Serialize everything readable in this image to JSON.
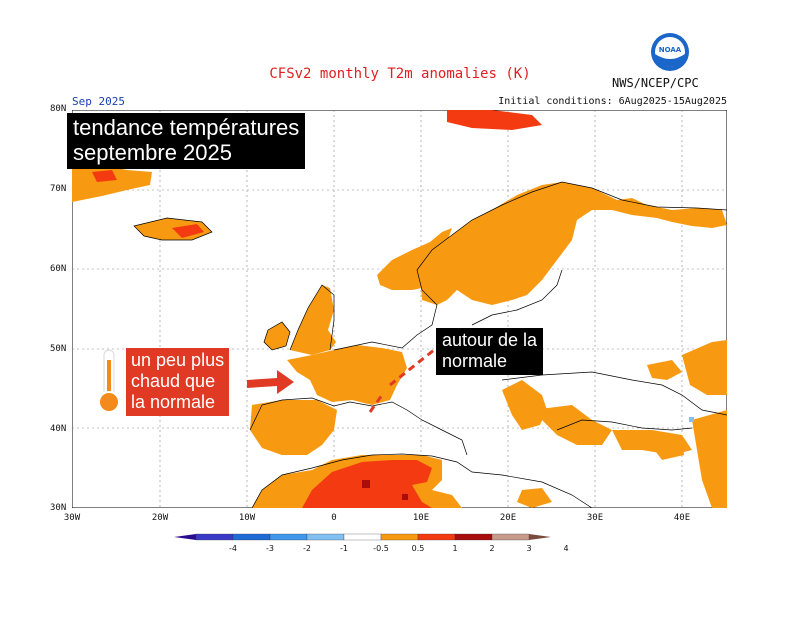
{
  "header": {
    "title": "CFSv2 monthly T2m anomalies (K)",
    "agency": "NWS/NCEP/CPC",
    "month": "Sep 2025",
    "initial_conditions": "Initial conditions: 6Aug2025-15Aug2025"
  },
  "annotations": {
    "headline_line1": "tendance températures",
    "headline_line2": "septembre 2025",
    "warm_line1": "un peu plus",
    "warm_line2": "chaud que",
    "warm_line3": "la normale",
    "normal_line1": "autour de la",
    "normal_line2": "normale"
  },
  "map": {
    "lat_labels": [
      "80N",
      "70N",
      "60N",
      "50N",
      "40N",
      "30N"
    ],
    "lon_labels": [
      "30W",
      "20W",
      "10W",
      "0",
      "10E",
      "20E",
      "30E",
      "40E"
    ],
    "region": "Europe"
  },
  "legend": {
    "labels": [
      "-4",
      "-3",
      "-2",
      "-1",
      "-0.5",
      "0.5",
      "1",
      "2",
      "3",
      "4"
    ],
    "colors": [
      "#2a0d8f",
      "#3a39c8",
      "#1f6bd6",
      "#3e97ea",
      "#80c0f2",
      "#ffffff",
      "#f79a12",
      "#f33a10",
      "#a80c0c",
      "#c79a8a",
      "#7a4b3c"
    ]
  }
}
